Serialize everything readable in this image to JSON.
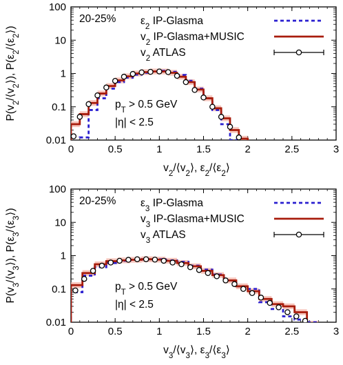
{
  "chart_data": [
    {
      "type": "line",
      "panel_label": "20-25%",
      "xlabel": "v2/⟨v2⟩, ε2/⟨ε2⟩",
      "ylabel": "P(v2/⟨v2⟩), P(ε2/⟨ε2⟩)",
      "xlim": [
        0,
        3
      ],
      "ylim": [
        0.01,
        100
      ],
      "yscale": "log",
      "x_ticks": [
        "0",
        "0.5",
        "1",
        "1.5",
        "2",
        "2.5",
        "3"
      ],
      "y_ticks": [
        "0.01",
        "0.1",
        "1",
        "10",
        "100"
      ],
      "annotations": [
        "pT > 0.5 GeV",
        "|η| < 2.5"
      ],
      "legend_position": "top-right",
      "series": [
        {
          "name": "ε2 IP-Glasma",
          "style": "dashed-step",
          "color": "#2a1fd0",
          "edges": [
            0.1,
            0.2,
            0.3,
            0.4,
            0.5,
            0.6,
            0.7,
            0.8,
            0.9,
            1.0,
            1.1,
            1.2,
            1.3,
            1.4,
            1.5,
            1.6,
            1.7,
            1.8,
            1.9
          ],
          "values": [
            0.012,
            0.08,
            0.18,
            0.35,
            0.55,
            0.75,
            0.92,
            1.05,
            1.15,
            1.2,
            1.12,
            0.9,
            0.6,
            0.35,
            0.18,
            0.08,
            0.03,
            0.01
          ]
        },
        {
          "name": "v2 IP-Glasma+MUSIC",
          "style": "solid-step",
          "color": "#a81c0c",
          "band_color": "#f4b3a7",
          "edges": [
            0.0,
            0.1,
            0.2,
            0.3,
            0.4,
            0.5,
            0.6,
            0.7,
            0.8,
            0.9,
            1.0,
            1.1,
            1.2,
            1.3,
            1.4,
            1.5,
            1.6,
            1.7,
            1.8,
            1.9,
            2.0
          ],
          "values": [
            0.03,
            0.06,
            0.13,
            0.25,
            0.42,
            0.62,
            0.82,
            1.0,
            1.1,
            1.15,
            1.15,
            1.05,
            0.8,
            0.55,
            0.33,
            0.18,
            0.09,
            0.045,
            0.02,
            0.011
          ]
        },
        {
          "name": "v2 ATLAS",
          "style": "points",
          "color": "#000000",
          "x": [
            0.03,
            0.1,
            0.2,
            0.3,
            0.4,
            0.5,
            0.6,
            0.7,
            0.8,
            0.9,
            1.0,
            1.1,
            1.2,
            1.3,
            1.4,
            1.5,
            1.6,
            1.7,
            1.8,
            1.9
          ],
          "y": [
            0.013,
            0.05,
            0.12,
            0.22,
            0.38,
            0.6,
            0.8,
            0.97,
            1.08,
            1.12,
            1.15,
            1.1,
            0.85,
            0.55,
            0.32,
            0.19,
            0.1,
            0.05,
            0.025,
            0.012
          ]
        }
      ]
    },
    {
      "type": "line",
      "panel_label": "20-25%",
      "xlabel": "v3/⟨v3⟩, ε3/⟨ε3⟩",
      "ylabel": "P(v3/⟨v3⟩), P(ε3/⟨ε3⟩)",
      "xlim": [
        0,
        3
      ],
      "ylim": [
        0.01,
        100
      ],
      "yscale": "log",
      "x_ticks": [
        "0",
        "0.5",
        "1",
        "1.5",
        "2",
        "2.5",
        "3"
      ],
      "y_ticks": [
        "0.01",
        "0.1",
        "1",
        "10",
        "100"
      ],
      "annotations": [
        "pT > 0.5 GeV",
        "|η| < 2.5"
      ],
      "legend_position": "top-right",
      "series": [
        {
          "name": "ε3 IP-Glasma",
          "style": "dashed-step",
          "color": "#2a1fd0",
          "edges": [
            0.0,
            0.13,
            0.27,
            0.4,
            0.53,
            0.67,
            0.8,
            0.93,
            1.07,
            1.2,
            1.33,
            1.47,
            1.6,
            1.73,
            1.87,
            2.0,
            2.13,
            2.27,
            2.4,
            2.53,
            2.67,
            2.8
          ],
          "values": [
            0.08,
            0.25,
            0.45,
            0.6,
            0.7,
            0.75,
            0.78,
            0.78,
            0.72,
            0.65,
            0.5,
            0.38,
            0.27,
            0.18,
            0.12,
            0.1,
            0.04,
            0.025,
            0.015,
            0.012,
            0.01
          ]
        },
        {
          "name": "v3 IP-Glasma+MUSIC",
          "style": "solid-step",
          "color": "#a81c0c",
          "band_color": "#f4b3a7",
          "edges": [
            0.0,
            0.13,
            0.27,
            0.4,
            0.53,
            0.67,
            0.8,
            0.93,
            1.07,
            1.2,
            1.33,
            1.47,
            1.6,
            1.73,
            1.87,
            2.0,
            2.13,
            2.27,
            2.4,
            2.53,
            2.67,
            2.8
          ],
          "values": [
            0.13,
            0.3,
            0.55,
            0.68,
            0.72,
            0.75,
            0.78,
            0.76,
            0.7,
            0.6,
            0.48,
            0.35,
            0.26,
            0.18,
            0.12,
            0.085,
            0.05,
            0.035,
            0.03,
            0.02,
            0.009
          ]
        },
        {
          "name": "v3 ATLAS",
          "style": "points",
          "color": "#000000",
          "x": [
            0.05,
            0.15,
            0.25,
            0.35,
            0.45,
            0.55,
            0.65,
            0.75,
            0.85,
            0.95,
            1.05,
            1.15,
            1.25,
            1.35,
            1.45,
            1.55,
            1.65,
            1.75,
            1.85,
            1.95,
            2.05,
            2.15,
            2.25,
            2.35,
            2.45,
            2.55,
            2.65
          ],
          "y": [
            0.09,
            0.2,
            0.35,
            0.5,
            0.62,
            0.7,
            0.75,
            0.78,
            0.78,
            0.76,
            0.7,
            0.62,
            0.55,
            0.45,
            0.37,
            0.3,
            0.24,
            0.18,
            0.14,
            0.1,
            0.075,
            0.055,
            0.038,
            0.028,
            0.02,
            0.015,
            0.011
          ]
        }
      ]
    }
  ]
}
